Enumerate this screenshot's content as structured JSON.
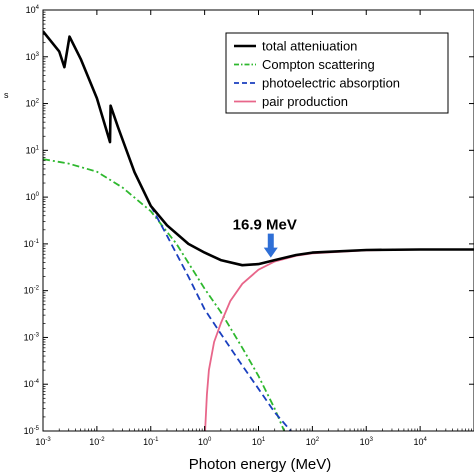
{
  "chart_data": {
    "type": "line",
    "title": "",
    "xlabel": "Photon energy (MeV)",
    "ylabel_fragment": "s",
    "x_scale": "log",
    "y_scale": "log",
    "xlim": [
      0.001,
      100000
    ],
    "ylim": [
      1e-05,
      10000
    ],
    "x_ticks": [
      {
        "base": "10",
        "exp": "-3",
        "value": 0.001
      },
      {
        "base": "10",
        "exp": "-2",
        "value": 0.01
      },
      {
        "base": "10",
        "exp": "-1",
        "value": 0.1
      },
      {
        "base": "10",
        "exp": "0",
        "value": 1
      },
      {
        "base": "10",
        "exp": "1",
        "value": 10
      },
      {
        "base": "10",
        "exp": "2",
        "value": 100
      },
      {
        "base": "10",
        "exp": "3",
        "value": 1000
      },
      {
        "base": "10",
        "exp": "4",
        "value": 10000
      }
    ],
    "y_ticks": [
      {
        "base": "10",
        "exp": "-5",
        "value": 1e-05
      },
      {
        "base": "10",
        "exp": "-4",
        "value": 0.0001
      },
      {
        "base": "10",
        "exp": "-3",
        "value": 0.001
      },
      {
        "base": "10",
        "exp": "-2",
        "value": 0.01
      },
      {
        "base": "10",
        "exp": "-1",
        "value": 0.1
      },
      {
        "base": "10",
        "exp": "0",
        "value": 1
      },
      {
        "base": "10",
        "exp": "1",
        "value": 10
      },
      {
        "base": "10",
        "exp": "2",
        "value": 100
      },
      {
        "base": "10",
        "exp": "3",
        "value": 1000
      },
      {
        "base": "10",
        "exp": "4",
        "value": 10000
      }
    ],
    "legend_position": "top-right",
    "series": [
      {
        "name": "total atteniuation",
        "color": "#000000",
        "style": "solid",
        "x": [
          0.001,
          0.002,
          0.0025,
          0.0031,
          0.005,
          0.01,
          0.0175,
          0.018,
          0.025,
          0.05,
          0.1,
          0.2,
          0.5,
          1,
          2,
          5,
          10,
          20,
          50,
          100,
          1000,
          10000,
          100000
        ],
        "y": [
          3500,
          1300,
          600,
          2700,
          900,
          130,
          15,
          90,
          30,
          3.4,
          0.65,
          0.25,
          0.1,
          0.065,
          0.045,
          0.035,
          0.037,
          0.045,
          0.058,
          0.065,
          0.074,
          0.076,
          0.076
        ]
      },
      {
        "name": "Compton scattering",
        "color": "#2eb82e",
        "style": "dashdot",
        "x": [
          0.001,
          0.003,
          0.01,
          0.03,
          0.1,
          0.3,
          1,
          2,
          5,
          10,
          20,
          30
        ],
        "y": [
          6.5,
          5.2,
          3.5,
          1.6,
          0.5,
          0.1,
          0.011,
          0.0035,
          0.0006,
          0.00015,
          3e-05,
          1e-05
        ]
      },
      {
        "name": "photoelectric absorption",
        "color": "#1a3fbf",
        "style": "dashed",
        "x": [
          0.1,
          0.2,
          0.5,
          1,
          2,
          5,
          10,
          20,
          40
        ],
        "y": [
          0.65,
          0.15,
          0.02,
          0.004,
          0.0012,
          0.00025,
          8e-05,
          2.5e-05,
          1e-05
        ]
      },
      {
        "name": "pair production",
        "color": "#e8668a",
        "style": "solid",
        "x": [
          1.022,
          1.1,
          1.2,
          1.5,
          2,
          3,
          5,
          10,
          20,
          50,
          100,
          1000,
          10000,
          100000
        ],
        "y": [
          1e-05,
          6e-05,
          0.0002,
          0.0008,
          0.002,
          0.006,
          0.014,
          0.028,
          0.042,
          0.056,
          0.063,
          0.073,
          0.076,
          0.076
        ]
      }
    ],
    "annotations": [
      {
        "text": "16.9 MeV",
        "x": 16.9,
        "y": 0.046,
        "arrow_color": "#2f6fd6"
      }
    ]
  }
}
